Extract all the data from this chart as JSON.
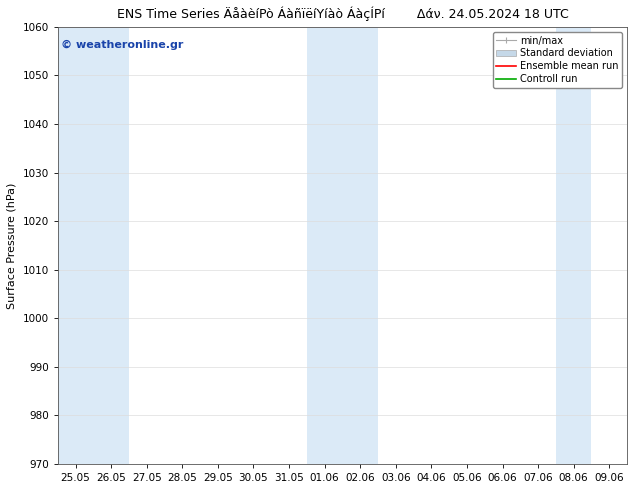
{
  "title": "ENS Time Series ÄåàèíPò ÁàñïëíYíàò ÁàçÍPí        Δάν. 24.05.2024 18 UTC",
  "ylabel": "Surface Pressure (hPa)",
  "ylim": [
    970,
    1060
  ],
  "yticks": [
    970,
    980,
    990,
    1000,
    1010,
    1020,
    1030,
    1040,
    1050,
    1060
  ],
  "xlabel_ticks": [
    "25.05",
    "26.05",
    "27.05",
    "28.05",
    "29.05",
    "30.05",
    "31.05",
    "01.06",
    "02.06",
    "03.06",
    "04.06",
    "05.06",
    "06.06",
    "07.06",
    "08.06",
    "09.06"
  ],
  "shaded_indices": [
    0,
    1,
    7,
    8,
    14
  ],
  "band_color": "#dbeaf7",
  "background_color": "#ffffff",
  "watermark_text": "© weatheronline.gr",
  "watermark_color": "#1a44aa",
  "legend_labels": [
    "min/max",
    "Standard deviation",
    "Ensemble mean run",
    "Controll run"
  ],
  "legend_colors": [
    "#aaaaaa",
    "#c5d8e8",
    "#ff0000",
    "#00aa00"
  ],
  "title_fontsize": 9,
  "tick_fontsize": 7.5,
  "ylabel_fontsize": 8,
  "legend_fontsize": 7,
  "watermark_fontsize": 8
}
